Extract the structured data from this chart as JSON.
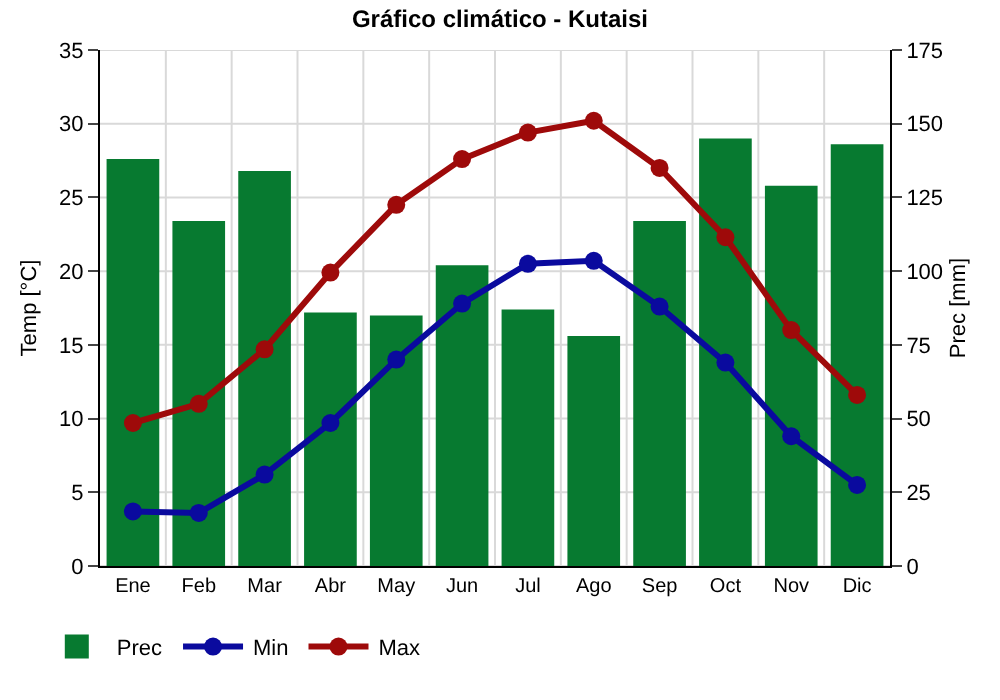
{
  "chart_data": {
    "type": "bar",
    "title": "Gráfico climático - Kutaisi",
    "ylabel": "Temp [°C]",
    "y2label": "Prec [mm]",
    "categories": [
      "Ene",
      "Feb",
      "Mar",
      "Abr",
      "May",
      "Jun",
      "Jul",
      "Ago",
      "Sep",
      "Oct",
      "Nov",
      "Dic"
    ],
    "series": [
      {
        "name": "Prec",
        "axis": "y2",
        "color": "#077a30",
        "values": [
          138,
          117,
          134,
          86,
          85,
          102,
          87,
          78,
          117,
          145,
          129,
          143
        ]
      },
      {
        "name": "Min",
        "type": "line",
        "color": "#0a0a9e",
        "values": [
          3.7,
          3.6,
          6.2,
          9.7,
          14,
          17.8,
          20.5,
          20.7,
          17.6,
          13.8,
          8.8,
          5.5
        ]
      },
      {
        "name": "Max",
        "type": "line",
        "color": "#9e0a0a",
        "values": [
          9.7,
          11,
          14.7,
          19.9,
          24.5,
          27.6,
          29.4,
          30.2,
          27,
          22.3,
          16,
          11.6
        ]
      }
    ],
    "ylim": [
      0,
      35
    ],
    "yticks": [
      0,
      5,
      10,
      15,
      20,
      25,
      30,
      35
    ],
    "y2lim": [
      0,
      175
    ],
    "y2ticks": [
      0,
      25,
      50,
      75,
      100,
      125,
      150,
      175
    ],
    "grid": true,
    "legend": "bottom left",
    "marker": "circle",
    "line_style": "solid"
  }
}
